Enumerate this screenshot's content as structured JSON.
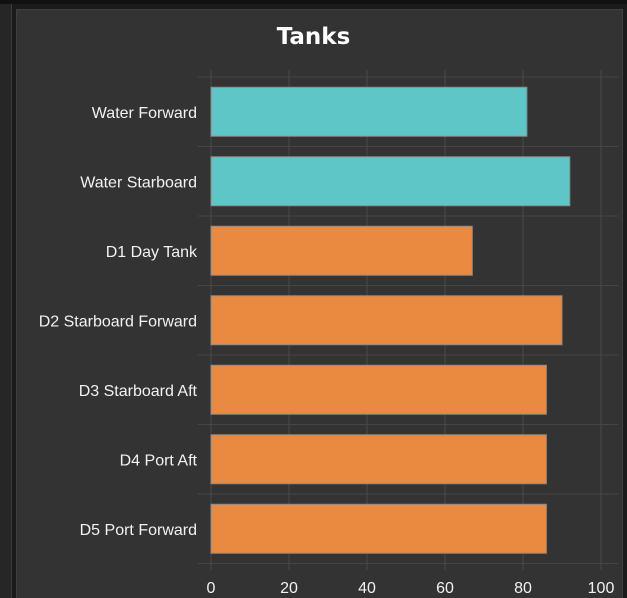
{
  "chart_data": {
    "type": "bar",
    "orientation": "horizontal",
    "title": "Tanks",
    "categories": [
      "Water Forward",
      "Water Starboard",
      "D1 Day Tank",
      "D2 Starboard Forward",
      "D3 Starboard Aft",
      "D4 Port Aft",
      "D5 Port Forward"
    ],
    "values": [
      81,
      92,
      67,
      90,
      86,
      86,
      86
    ],
    "bar_colors": [
      "#5ec6c6",
      "#5ec6c6",
      "#e98a40",
      "#e98a40",
      "#e98a40",
      "#e98a40",
      "#e98a40"
    ],
    "xlim": [
      0,
      100
    ],
    "xticks": [
      0,
      20,
      40,
      60,
      80,
      100
    ],
    "xlabel": "",
    "ylabel": "",
    "grid": true,
    "legend": "none"
  }
}
